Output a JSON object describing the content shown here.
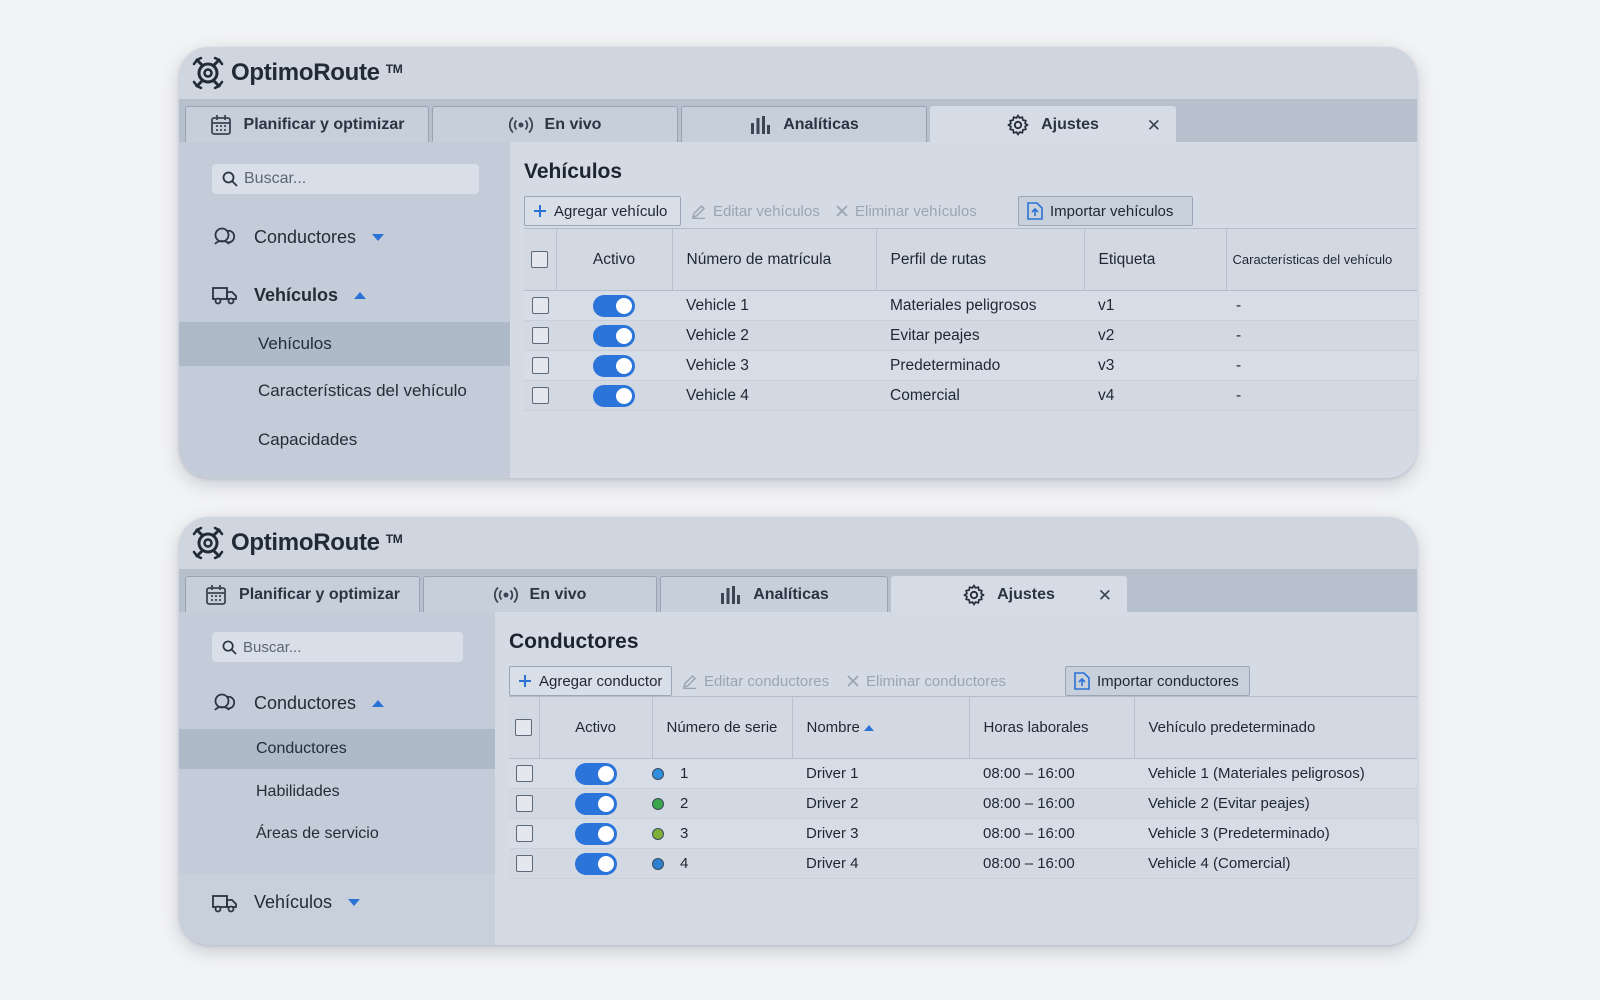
{
  "app": {
    "brand": "OptimoRoute",
    "trademark": "TM"
  },
  "tabs": [
    {
      "label": "Planificar y optimizar",
      "icon": "calendar-icon"
    },
    {
      "label": "En vivo",
      "icon": "broadcast-icon"
    },
    {
      "label": "Analíticas",
      "icon": "bar-chart-icon"
    },
    {
      "label": "Ajustes",
      "icon": "gear-icon",
      "active": true
    }
  ],
  "close_glyph": "✕",
  "accent_color": "#2b74d9",
  "vehicles_panel": {
    "search_placeholder": "Buscar...",
    "nav": {
      "drivers_label": "Conductores",
      "vehicles_label": "Vehículos",
      "sub_items": [
        "Vehículos",
        "Características del vehículo",
        "Capacidades"
      ]
    },
    "title": "Vehículos",
    "toolbar": {
      "add": "Agregar vehículo",
      "edit": "Editar vehículos",
      "delete": "Eliminar vehículos",
      "import": "Importar vehículos"
    },
    "columns": [
      "Activo",
      "Número de matrícula",
      "Perfil de rutas",
      "Etiqueta",
      "Características del vehículo"
    ],
    "rows": [
      {
        "active": true,
        "plate": "Vehicle 1",
        "profile": "Materiales peligrosos",
        "tag": "v1",
        "features": "-"
      },
      {
        "active": true,
        "plate": "Vehicle 2",
        "profile": "Evitar peajes",
        "tag": "v2",
        "features": "-"
      },
      {
        "active": true,
        "plate": "Vehicle 3",
        "profile": "Predeterminado",
        "tag": "v3",
        "features": "-"
      },
      {
        "active": true,
        "plate": "Vehicle 4",
        "profile": "Comercial",
        "tag": "v4",
        "features": "-"
      }
    ]
  },
  "drivers_panel": {
    "search_placeholder": "Buscar...",
    "nav": {
      "drivers_label": "Conductores",
      "sub_items": [
        "Conductores",
        "Habilidades",
        "Áreas de servicio"
      ],
      "vehicles_label": "Vehículos"
    },
    "title": "Conductores",
    "toolbar": {
      "add": "Agregar conductor",
      "edit": "Editar conductores",
      "delete": "Eliminar conductores",
      "import": "Importar conductores"
    },
    "columns": [
      "Activo",
      "Número de serie",
      "Nombre",
      "Horas laborales",
      "Vehículo predeterminado"
    ],
    "rows": [
      {
        "active": true,
        "color": "#2f8fdc",
        "serial": "1",
        "name": "Driver 1",
        "hours": "08:00 – 16:00",
        "vehicle": "Vehicle 1 (Materiales peligrosos)"
      },
      {
        "active": true,
        "color": "#3aa54a",
        "serial": "2",
        "name": "Driver 2",
        "hours": "08:00 – 16:00",
        "vehicle": "Vehicle 2 (Evitar peajes)"
      },
      {
        "active": true,
        "color": "#7fae3a",
        "serial": "3",
        "name": "Driver 3",
        "hours": "08:00 – 16:00",
        "vehicle": "Vehicle 3 (Predeterminado)"
      },
      {
        "active": true,
        "color": "#2f7fd0",
        "serial": "4",
        "name": "Driver 4",
        "hours": "08:00 – 16:00",
        "vehicle": "Vehicle 4 (Comercial)"
      }
    ]
  }
}
